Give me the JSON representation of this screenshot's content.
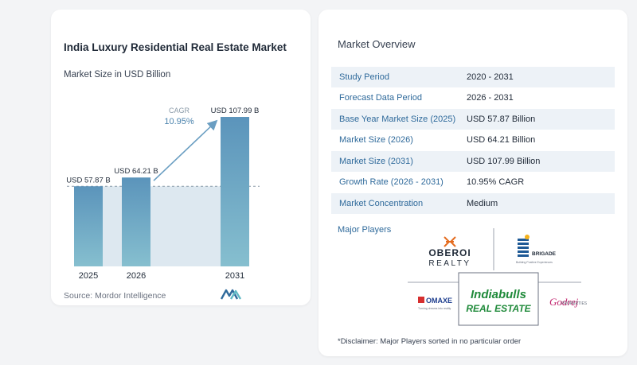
{
  "left_card": {
    "title": "India Luxury Residential Real Estate Market",
    "subtitle": "Market Size in USD Billion",
    "source": "Source:  Mordor Intelligence"
  },
  "chart_data": {
    "type": "bar",
    "title": "India Luxury Residential Real Estate Market",
    "subtitle": "Market Size in USD Billion",
    "categories": [
      "2025",
      "2026",
      "2031"
    ],
    "values": [
      57.87,
      64.21,
      107.99
    ],
    "data_labels": [
      "USD 57.87 B",
      "USD 64.21 B",
      "USD 107.99 B"
    ],
    "cagr_label": "CAGR",
    "cagr_value": "10.95%",
    "ylim": [
      0,
      108
    ],
    "bar_color": "#5b94bb",
    "bar_color_top": "#5b94bb",
    "bar_color_bottom": "#7fb6cc",
    "band_color": "#dde8f0",
    "arrow_color": "#6a9ec2",
    "grid": false
  },
  "right_card": {
    "overview_title": "Market Overview",
    "rows": [
      {
        "label": "Study Period",
        "value": "2020 - 2031"
      },
      {
        "label": "Forecast Data Period",
        "value": "2026 - 2031"
      },
      {
        "label": "Base Year Market Size (2025)",
        "value": "USD 57.87 Billion"
      },
      {
        "label": "Market Size (2026)",
        "value": "USD 64.21 Billion"
      },
      {
        "label": "Market Size (2031)",
        "value": "USD 107.99 Billion"
      },
      {
        "label": "Growth Rate (2026 - 2031)",
        "value": "10.95% CAGR"
      },
      {
        "label": "Market Concentration",
        "value": "Medium"
      }
    ],
    "players_title": "Major Players",
    "players": {
      "oberoi": {
        "line1": "OBEROI",
        "line2": "REALTY"
      },
      "brigade": {
        "name": "BRIGADE",
        "tagline": "Building Positive Experiences"
      },
      "omaxe": {
        "name": "OMAXE",
        "tagline": "Turning dreams into reality"
      },
      "indiabulls": {
        "line1": "Indiabulls",
        "line2": "REAL ESTATE"
      },
      "godrej": {
        "name": "Godrej",
        "suffix": "PROPERTIES"
      }
    },
    "disclaimer": "*Disclaimer: Major Players sorted in no particular order"
  }
}
